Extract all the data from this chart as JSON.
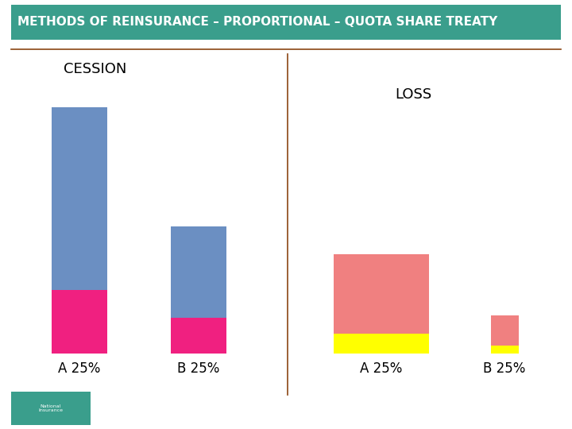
{
  "title": "METHODS OF REINSURANCE – PROPORTIONAL – QUOTA SHARE TREATY",
  "title_bg_color": "#3a9e8c",
  "title_text_color": "#ffffff",
  "bg_color": "#ffffff",
  "divider_color": "#8B4513",
  "section_left_label": "CESSION",
  "section_right_label": "LOSS",
  "cession_A_blue": 230,
  "cession_A_pink": 80,
  "cession_B_blue": 115,
  "cession_B_pink": 45,
  "loss_A_salmon": 100,
  "loss_A_yellow": 25,
  "loss_B_salmon": 38,
  "loss_B_yellow": 10,
  "bar_blue": "#6b8fc2",
  "bar_pink": "#f02080",
  "bar_salmon": "#f08080",
  "bar_yellow": "#ffff00",
  "label_A": "A 25%",
  "label_B": "B 25%",
  "label_fontsize": 12,
  "section_fontsize": 13,
  "title_fontsize": 11
}
